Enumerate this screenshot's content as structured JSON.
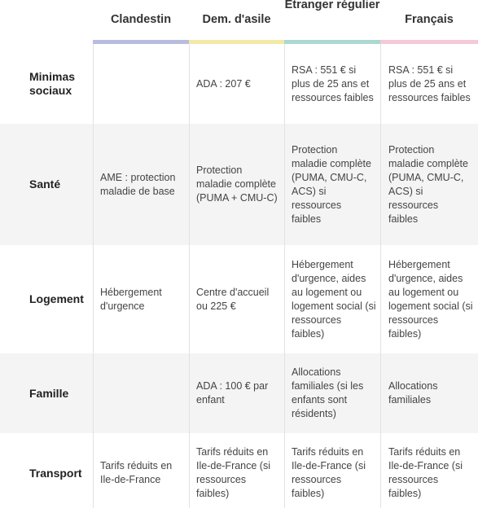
{
  "columns": [
    {
      "label": "Clandestin",
      "color": "#b8bde0"
    },
    {
      "label": "Dem. d'asile",
      "color": "#f2e9a6"
    },
    {
      "label": "Etranger régulier",
      "color": "#a9d9d0"
    },
    {
      "label": "Français",
      "color": "#f5c9d6"
    }
  ],
  "rows": [
    {
      "label": "Minimas sociaux",
      "cells": [
        "",
        "ADA : 207 €",
        "RSA : 551 € si plus de 25 ans et ressources faibles",
        "RSA : 551 € si plus de 25 ans et ressources faibles"
      ]
    },
    {
      "label": "Santé",
      "cells": [
        "AME : protection maladie de base",
        "Protection maladie complète (PUMA + CMU-C)",
        "Protection maladie complète (PUMA, CMU-C, ACS) si ressources faibles",
        "Protection maladie complète (PUMA, CMU-C, ACS) si ressources faibles"
      ]
    },
    {
      "label": "Logement",
      "cells": [
        "Hébergement d'urgence",
        "Centre d'accueil ou 225 €",
        "Hébergement d'urgence, aides au logement ou logement social (si ressources faibles)",
        "Hébergement d'urgence, aides au logement ou logement social (si ressources faibles)"
      ]
    },
    {
      "label": "Famille",
      "cells": [
        "",
        "ADA : 100 € par enfant",
        "Allocations familiales (si les enfants sont résidents)",
        "Allocations familiales"
      ]
    },
    {
      "label": "Transport",
      "cells": [
        "Tarifs réduits en Ile-de-France",
        "Tarifs réduits en Ile-de-France (si ressources faibles)",
        "Tarifs réduits en Ile-de-France (si ressources faibles)",
        "Tarifs réduits en Ile-de-France (si ressources faibles)"
      ]
    }
  ],
  "row_shading": [
    "#ffffff",
    "#f4f4f4",
    "#ffffff",
    "#f4f4f4",
    "#ffffff"
  ]
}
